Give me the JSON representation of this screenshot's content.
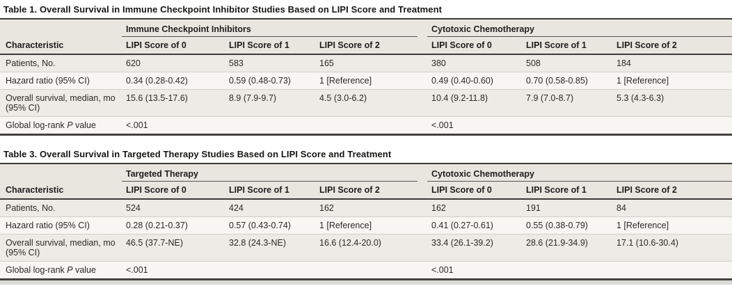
{
  "colors": {
    "rule_dark": "#3c3a37",
    "header_band": "#e9e6e0",
    "row_shaded": "#edebe5",
    "row_light": "#f7f6f2",
    "row_divider": "#d2cfc9"
  },
  "tables": [
    {
      "title": "Table 1. Overall Survival in Immune Checkpoint Inhibitor Studies Based on LIPI Score and Treatment",
      "col_header": "Characteristic",
      "groups": [
        {
          "label": "Immune Checkpoint Inhibitors",
          "columns": [
            "LIPI Score of 0",
            "LIPI Score of 1",
            "LIPI Score of 2"
          ]
        },
        {
          "label": "Cytotoxic Chemotherapy",
          "columns": [
            "LIPI Score of 0",
            "LIPI Score of 1",
            "LIPI Score of 2"
          ]
        }
      ],
      "rows": [
        {
          "label": {
            "pre": "Patients, No.",
            "it": "",
            "post": ""
          },
          "values": [
            "620",
            "583",
            "165",
            "380",
            "508",
            "184"
          ]
        },
        {
          "label": {
            "pre": "Hazard ratio (95% CI)",
            "it": "",
            "post": ""
          },
          "values": [
            "0.34 (0.28-0.42)",
            "0.59 (0.48-0.73)",
            "1 [Reference]",
            "0.49 (0.40-0.60)",
            "0.70 (0.58-0.85)",
            "1 [Reference]"
          ]
        },
        {
          "label": {
            "pre": "Overall survival, median, mo (95% CI)",
            "it": "",
            "post": ""
          },
          "values": [
            "15.6 (13.5-17.6)",
            "8.9 (7.9-9.7)",
            "4.5 (3.0-6.2)",
            "10.4 (9.2-11.8)",
            "7.9 (7.0-8.7)",
            "5.3 (4.3-6.3)"
          ]
        },
        {
          "label": {
            "pre": "Global log-rank ",
            "it": "P",
            "post": " value"
          },
          "values": [
            "<.001",
            "",
            "",
            "<.001",
            "",
            ""
          ]
        }
      ]
    },
    {
      "title": "Table 3. Overall Survival in Targeted Therapy Studies Based on LIPI Score and Treatment",
      "col_header": "Characteristic",
      "groups": [
        {
          "label": "Targeted Therapy",
          "columns": [
            "LIPI Score of 0",
            "LIPI Score of 1",
            "LIPI Score of 2"
          ]
        },
        {
          "label": "Cytotoxic Chemotherapy",
          "columns": [
            "LIPI Score of 0",
            "LIPI Score of 1",
            "LIPI Score of 2"
          ]
        }
      ],
      "rows": [
        {
          "label": {
            "pre": "Patients, No.",
            "it": "",
            "post": ""
          },
          "values": [
            "524",
            "424",
            "162",
            "162",
            "191",
            "84"
          ]
        },
        {
          "label": {
            "pre": "Hazard ratio (95% CI)",
            "it": "",
            "post": ""
          },
          "values": [
            "0.28 (0.21-0.37)",
            "0.57 (0.43-0.74)",
            "1 [Reference]",
            "0.41 (0.27-0.61)",
            "0.55 (0.38-0.79)",
            "1 [Reference]"
          ]
        },
        {
          "label": {
            "pre": "Overall survival, median, mo (95% CI)",
            "it": "",
            "post": ""
          },
          "values": [
            "46.5 (37.7-NE)",
            "32.8 (24.3-NE)",
            "16.6 (12.4-20.0)",
            "33.4 (26.1-39.2)",
            "28.6 (21.9-34.9)",
            "17.1 (10.6-30.4)"
          ]
        },
        {
          "label": {
            "pre": "Global log-rank ",
            "it": "P",
            "post": " value"
          },
          "values": [
            "<.001",
            "",
            "",
            "<.001",
            "",
            ""
          ]
        }
      ]
    }
  ]
}
